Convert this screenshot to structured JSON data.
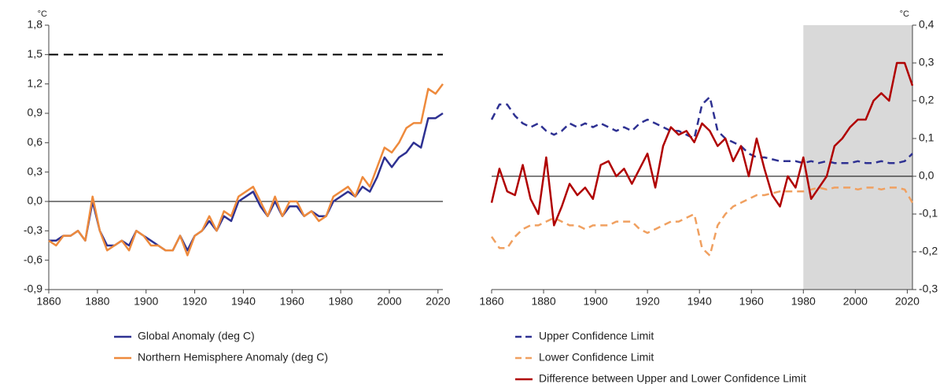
{
  "chart_data": [
    {
      "type": "line",
      "y_unit": "°C",
      "x": [
        1860,
        1863,
        1866,
        1869,
        1872,
        1875,
        1878,
        1881,
        1884,
        1887,
        1890,
        1893,
        1896,
        1899,
        1902,
        1905,
        1908,
        1911,
        1914,
        1917,
        1920,
        1923,
        1926,
        1929,
        1932,
        1935,
        1938,
        1941,
        1944,
        1947,
        1950,
        1953,
        1956,
        1959,
        1962,
        1965,
        1968,
        1971,
        1974,
        1977,
        1980,
        1983,
        1986,
        1989,
        1992,
        1995,
        1998,
        2001,
        2004,
        2007,
        2010,
        2013,
        2016,
        2019,
        2022
      ],
      "series": [
        {
          "name": "Global Anomaly (deg C)",
          "color": "#2e3192",
          "dash": false,
          "values": [
            -0.4,
            -0.4,
            -0.35,
            -0.35,
            -0.3,
            -0.4,
            0,
            -0.3,
            -0.45,
            -0.45,
            -0.4,
            -0.45,
            -0.3,
            -0.35,
            -0.4,
            -0.45,
            -0.5,
            -0.5,
            -0.35,
            -0.5,
            -0.35,
            -0.3,
            -0.2,
            -0.3,
            -0.15,
            -0.2,
            0,
            0.05,
            0.1,
            -0.05,
            -0.15,
            0,
            -0.15,
            -0.05,
            -0.05,
            -0.15,
            -0.1,
            -0.15,
            -0.15,
            0,
            0.05,
            0.1,
            0.05,
            0.15,
            0.1,
            0.25,
            0.45,
            0.35,
            0.45,
            0.5,
            0.6,
            0.55,
            0.85,
            0.85,
            0.9
          ]
        },
        {
          "name": "Northern Hemisphere Anomaly (deg C)",
          "color": "#ee8a3c",
          "dash": false,
          "values": [
            -0.4,
            -0.45,
            -0.35,
            -0.35,
            -0.3,
            -0.4,
            0.05,
            -0.3,
            -0.5,
            -0.45,
            -0.4,
            -0.5,
            -0.3,
            -0.35,
            -0.45,
            -0.45,
            -0.5,
            -0.5,
            -0.35,
            -0.55,
            -0.35,
            -0.3,
            -0.15,
            -0.3,
            -0.1,
            -0.15,
            0.05,
            0.1,
            0.15,
            0,
            -0.15,
            0.05,
            -0.15,
            0,
            0,
            -0.15,
            -0.1,
            -0.2,
            -0.15,
            0.05,
            0.1,
            0.15,
            0.05,
            0.25,
            0.15,
            0.35,
            0.55,
            0.5,
            0.6,
            0.75,
            0.8,
            0.8,
            1.15,
            1.1,
            1.2
          ]
        }
      ],
      "reference_line": 1.5,
      "xlim": [
        1860,
        2022
      ],
      "xticks": [
        1860,
        1880,
        1900,
        1920,
        1940,
        1960,
        1980,
        2000,
        2020
      ],
      "ylim": [
        -0.9,
        1.8
      ],
      "yticks": [
        {
          "value": -0.9,
          "label": "-0,9"
        },
        {
          "value": -0.6,
          "label": "-0,6"
        },
        {
          "value": -0.3,
          "label": "-0,3"
        },
        {
          "value": 0,
          "label": "0,0"
        },
        {
          "value": 0.3,
          "label": "0,3"
        },
        {
          "value": 0.6,
          "label": "0,6"
        },
        {
          "value": 0.9,
          "label": "0,9"
        },
        {
          "value": 1.2,
          "label": "1,2"
        },
        {
          "value": 1.5,
          "label": "1,5"
        },
        {
          "value": 1.8,
          "label": "1,8"
        }
      ],
      "yaxis_position": "left"
    },
    {
      "type": "line",
      "y_unit": "°C",
      "x": [
        1860,
        1863,
        1866,
        1869,
        1872,
        1875,
        1878,
        1881,
        1884,
        1887,
        1890,
        1893,
        1896,
        1899,
        1902,
        1905,
        1908,
        1911,
        1914,
        1917,
        1920,
        1923,
        1926,
        1929,
        1932,
        1935,
        1938,
        1941,
        1944,
        1947,
        1950,
        1953,
        1956,
        1959,
        1962,
        1965,
        1968,
        1971,
        1974,
        1977,
        1980,
        1983,
        1986,
        1989,
        1992,
        1995,
        1998,
        2001,
        2004,
        2007,
        2010,
        2013,
        2016,
        2019,
        2022
      ],
      "series": [
        {
          "name": "Upper Confidence Limit",
          "color": "#2e3192",
          "dash": true,
          "values": [
            0.15,
            0.19,
            0.19,
            0.16,
            0.14,
            0.13,
            0.14,
            0.12,
            0.11,
            0.12,
            0.14,
            0.13,
            0.14,
            0.13,
            0.14,
            0.13,
            0.12,
            0.13,
            0.12,
            0.14,
            0.15,
            0.14,
            0.13,
            0.12,
            0.12,
            0.11,
            0.1,
            0.19,
            0.21,
            0.12,
            0.1,
            0.09,
            0.08,
            0.06,
            0.05,
            0.05,
            0.045,
            0.04,
            0.04,
            0.04,
            0.035,
            0.04,
            0.035,
            0.04,
            0.035,
            0.035,
            0.035,
            0.04,
            0.035,
            0.035,
            0.04,
            0.035,
            0.035,
            0.04,
            0.06
          ]
        },
        {
          "name": "Lower Confidence Limit",
          "color": "#f0a060",
          "dash": true,
          "values": [
            -0.16,
            -0.19,
            -0.19,
            -0.16,
            -0.14,
            -0.13,
            -0.13,
            -0.12,
            -0.11,
            -0.12,
            -0.13,
            -0.13,
            -0.14,
            -0.13,
            -0.13,
            -0.13,
            -0.12,
            -0.12,
            -0.12,
            -0.14,
            -0.15,
            -0.14,
            -0.13,
            -0.12,
            -0.12,
            -0.11,
            -0.1,
            -0.19,
            -0.21,
            -0.13,
            -0.1,
            -0.08,
            -0.07,
            -0.06,
            -0.05,
            -0.05,
            -0.045,
            -0.04,
            -0.04,
            -0.04,
            -0.04,
            -0.035,
            -0.03,
            -0.035,
            -0.03,
            -0.03,
            -0.03,
            -0.035,
            -0.03,
            -0.03,
            -0.035,
            -0.03,
            -0.03,
            -0.035,
            -0.07
          ]
        },
        {
          "name": "Difference between Upper and Lower Confidence Limit",
          "color": "#b00000",
          "dash": false,
          "values": [
            -0.07,
            0.02,
            -0.04,
            -0.05,
            0.03,
            -0.06,
            -0.1,
            0.05,
            -0.13,
            -0.08,
            -0.02,
            -0.05,
            -0.03,
            -0.06,
            0.03,
            0.04,
            0,
            0.02,
            -0.02,
            0.02,
            0.06,
            -0.03,
            0.08,
            0.13,
            0.11,
            0.12,
            0.09,
            0.14,
            0.12,
            0.08,
            0.1,
            0.04,
            0.08,
            0,
            0.1,
            0.02,
            -0.05,
            -0.08,
            0,
            -0.03,
            0.05,
            -0.06,
            -0.03,
            0,
            0.08,
            0.1,
            0.13,
            0.15,
            0.15,
            0.2,
            0.22,
            0.2,
            0.3,
            0.3,
            0.24
          ]
        }
      ],
      "shaded_xrange": [
        1980,
        2022
      ],
      "xlim": [
        1860,
        2022
      ],
      "xticks": [
        1860,
        1880,
        1900,
        1920,
        1940,
        1960,
        1980,
        2000,
        2020
      ],
      "ylim": [
        -0.3,
        0.4
      ],
      "yticks": [
        {
          "value": -0.3,
          "label": "-0,3"
        },
        {
          "value": -0.2,
          "label": "-0,2"
        },
        {
          "value": -0.1,
          "label": "-0,1"
        },
        {
          "value": 0,
          "label": "0,0"
        },
        {
          "value": 0.1,
          "label": "0,1"
        },
        {
          "value": 0.2,
          "label": "0,2"
        },
        {
          "value": 0.3,
          "label": "0,3"
        },
        {
          "value": 0.4,
          "label": "0,4"
        }
      ],
      "yaxis_position": "right"
    }
  ]
}
